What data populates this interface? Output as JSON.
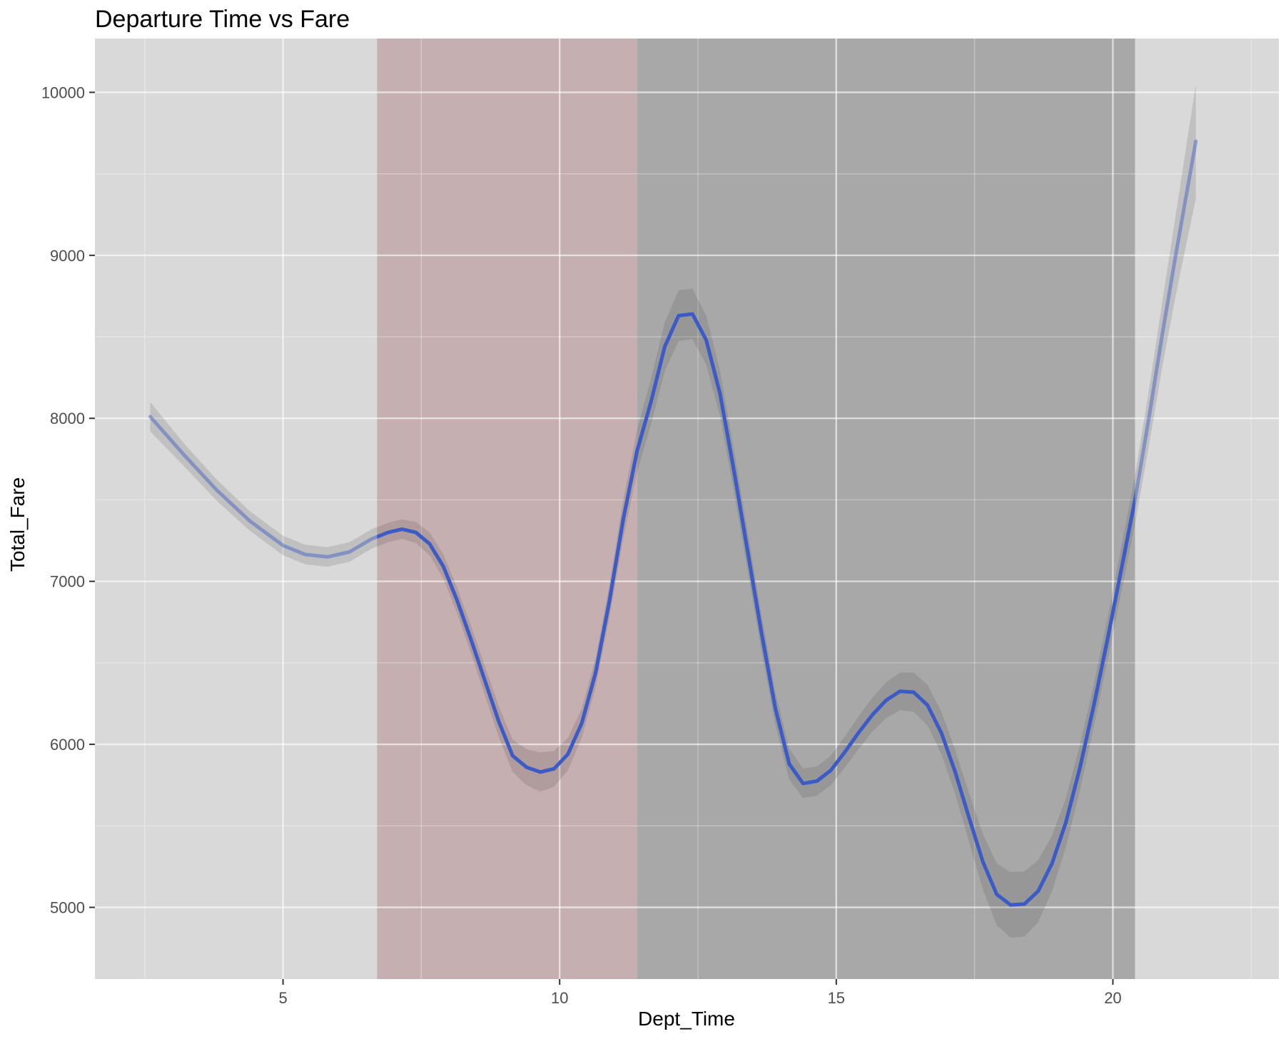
{
  "chart_data": {
    "type": "line",
    "title": "Departure Time vs Fare",
    "xlabel": "Dept_Time",
    "ylabel": "Total_Fare",
    "xlim": [
      1.6,
      23.0
    ],
    "ylim": [
      4560,
      10330
    ],
    "xticks": [
      5,
      10,
      15,
      20
    ],
    "xtick_labels": [
      "5",
      "10",
      "15",
      "20"
    ],
    "yticks": [
      5000,
      6000,
      7000,
      8000,
      9000,
      10000
    ],
    "ytick_labels": [
      "5000",
      "6000",
      "7000",
      "8000",
      "9000",
      "10000"
    ],
    "grid": true,
    "shaded_regions": [
      {
        "x_start": 6.7,
        "x_end": 11.4,
        "color": "#c6afb0"
      },
      {
        "x_start": 11.4,
        "x_end": 20.4,
        "color": "#a9a8a9"
      }
    ],
    "series": [
      {
        "color": "#3c5bc6",
        "x": [
          2.6,
          3.2,
          3.8,
          4.4,
          5.0,
          5.4,
          5.8,
          6.2,
          6.6,
          6.9,
          7.15,
          7.4,
          7.65,
          7.9,
          8.15,
          8.4,
          8.65,
          8.9,
          9.15,
          9.4,
          9.65,
          9.9,
          10.15,
          10.4,
          10.65,
          10.9,
          11.15,
          11.4,
          11.65,
          11.9,
          12.15,
          12.4,
          12.65,
          12.9,
          13.15,
          13.4,
          13.65,
          13.9,
          14.15,
          14.4,
          14.65,
          14.9,
          15.15,
          15.4,
          15.65,
          15.9,
          16.15,
          16.4,
          16.65,
          16.9,
          17.15,
          17.4,
          17.65,
          17.9,
          18.15,
          18.4,
          18.65,
          18.9,
          19.15,
          19.4,
          19.65,
          19.9,
          20.15,
          20.4,
          20.65,
          20.9,
          21.15,
          21.5
        ],
        "y": [
          8010,
          7780,
          7560,
          7370,
          7220,
          7165,
          7150,
          7180,
          7260,
          7300,
          7320,
          7300,
          7230,
          7090,
          6880,
          6640,
          6390,
          6140,
          5930,
          5860,
          5830,
          5850,
          5940,
          6130,
          6440,
          6880,
          7380,
          7800,
          8100,
          8440,
          8630,
          8640,
          8480,
          8150,
          7680,
          7180,
          6680,
          6220,
          5880,
          5760,
          5775,
          5840,
          5950,
          6070,
          6180,
          6270,
          6325,
          6320,
          6240,
          6070,
          5830,
          5550,
          5280,
          5080,
          5015,
          5020,
          5100,
          5270,
          5520,
          5850,
          6230,
          6640,
          7070,
          7500,
          8000,
          8530,
          9030,
          9700
        ],
        "ci_half_width": [
          90,
          70,
          65,
          60,
          60,
          60,
          60,
          60,
          60,
          60,
          60,
          65,
          70,
          75,
          80,
          85,
          90,
          95,
          100,
          110,
          120,
          110,
          100,
          90,
          90,
          100,
          120,
          130,
          140,
          150,
          155,
          155,
          150,
          140,
          130,
          120,
          110,
          100,
          95,
          90,
          90,
          90,
          95,
          100,
          105,
          110,
          115,
          120,
          125,
          130,
          135,
          150,
          170,
          190,
          200,
          200,
          190,
          170,
          150,
          140,
          130,
          130,
          140,
          150,
          170,
          200,
          250,
          350
        ]
      }
    ]
  }
}
